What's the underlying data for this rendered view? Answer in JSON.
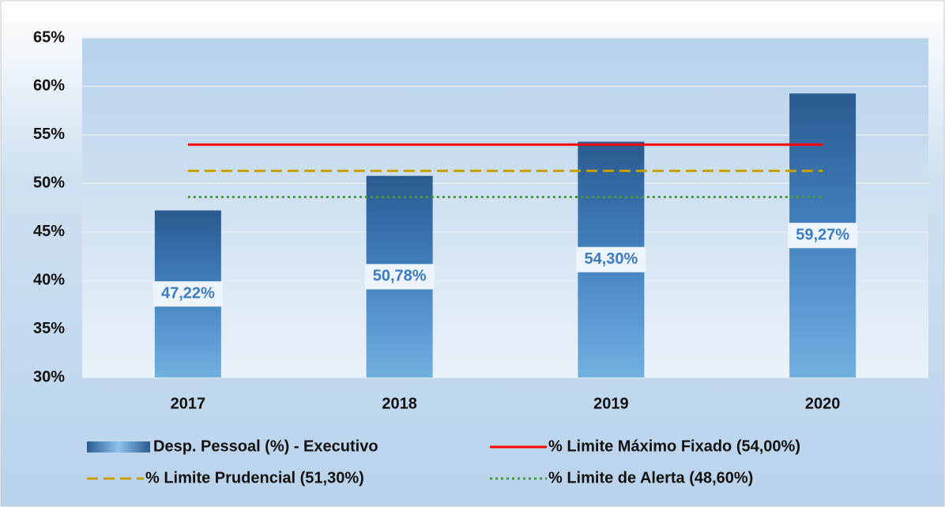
{
  "chart_data": {
    "type": "bar",
    "categories": [
      "2017",
      "2018",
      "2019",
      "2020"
    ],
    "series": [
      {
        "name": "Desp. Pessoal (%) - Executivo",
        "type": "bar",
        "color": "#2f6aa3",
        "values": [
          47.22,
          50.78,
          54.3,
          59.27
        ],
        "value_labels": [
          "47,22%",
          "50,78%",
          "54,30%",
          "59,27%"
        ]
      },
      {
        "name": "% Limite Máximo Fixado (54,00%)",
        "type": "line",
        "color": "#ff0000",
        "dash": "solid",
        "values": [
          54,
          54,
          54,
          54
        ]
      },
      {
        "name": "% Limite Prudencial (51,30%)",
        "type": "line",
        "color": "#c9a000",
        "dash": "dashed",
        "values": [
          51.3,
          51.3,
          51.3,
          51.3
        ]
      },
      {
        "name": "% Limite de Alerta (48,60%)",
        "type": "line",
        "color": "#4a9a3a",
        "dash": "dotted",
        "values": [
          48.6,
          48.6,
          48.6,
          48.6
        ]
      }
    ],
    "ylim": [
      30,
      65
    ],
    "yticks": [
      {
        "value": 30,
        "label": "30%"
      },
      {
        "value": 35,
        "label": "35%"
      },
      {
        "value": 40,
        "label": "40%"
      },
      {
        "value": 45,
        "label": "45%"
      },
      {
        "value": 50,
        "label": "50%"
      },
      {
        "value": 55,
        "label": "55%"
      },
      {
        "value": 60,
        "label": "60%"
      },
      {
        "value": 65,
        "label": "65%"
      }
    ],
    "grid": true,
    "legend": "bottom"
  }
}
